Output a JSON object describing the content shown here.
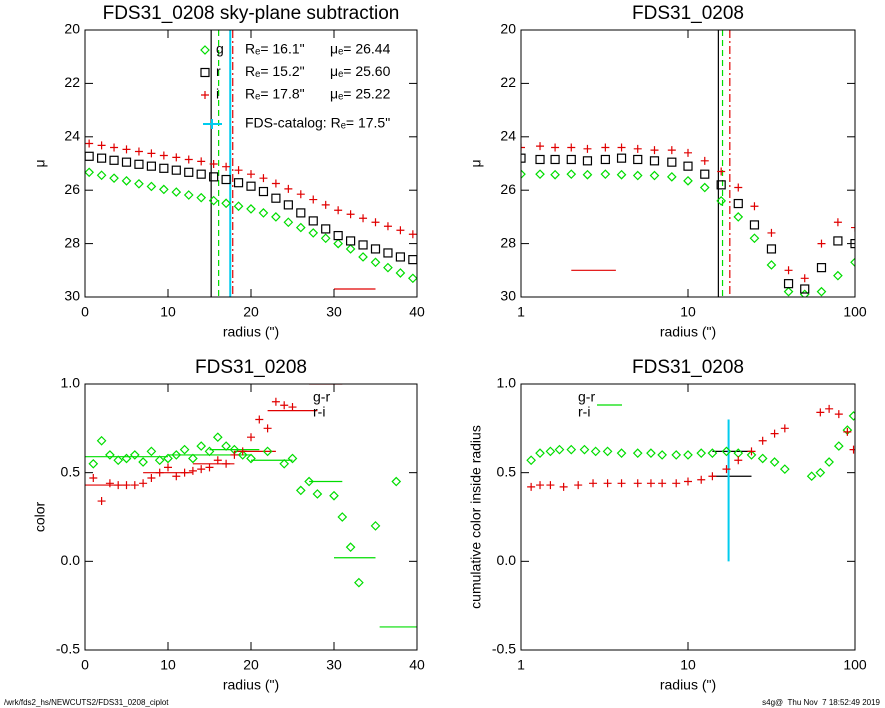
{
  "chart_data": [
    {
      "type": "scatter",
      "title": "FDS31_0208 sky-plane subtraction",
      "xlabel": "radius (\")",
      "ylabel": "μ",
      "xlim": [
        0,
        40
      ],
      "ylim": [
        30,
        20
      ],
      "xticks": [
        0,
        10,
        20,
        30,
        40
      ],
      "yticks": [
        20,
        22,
        24,
        26,
        28,
        30
      ],
      "xlog": false,
      "legend": true,
      "show_re": true,
      "show_catalog": true,
      "series": [
        {
          "name": "g",
          "color": "#00dd00",
          "marker": "diamond",
          "linestyle": "dashed",
          "re": {
            "value": 16.1,
            "label": "Rₑ= 16.1\""
          },
          "mu": {
            "value": 26.44,
            "label": "μₑ= 26.44"
          },
          "x": [
            0.5,
            2,
            3.5,
            5,
            6.5,
            8,
            9.5,
            11,
            12.5,
            14,
            15.5,
            17,
            18.5,
            20,
            21.5,
            23,
            24.5,
            26,
            27.5,
            29,
            30.5,
            32,
            33.5,
            35,
            36.5,
            38,
            39.5
          ],
          "values": [
            25.33,
            25.44,
            25.55,
            25.65,
            25.76,
            25.86,
            25.97,
            26.07,
            26.18,
            26.28,
            26.39,
            26.49,
            26.6,
            26.7,
            26.85,
            27.0,
            27.2,
            27.4,
            27.6,
            27.8,
            28.0,
            28.2,
            28.5,
            28.7,
            28.9,
            29.1,
            29.3
          ]
        },
        {
          "name": "r",
          "color": "#000000",
          "marker": "square",
          "linestyle": "solid",
          "re": {
            "value": 15.2,
            "label": "Rₑ= 15.2\""
          },
          "mu": {
            "value": 25.6,
            "label": "μₑ= 25.60"
          },
          "x": [
            0.5,
            2,
            3.5,
            5,
            6.5,
            8,
            9.5,
            11,
            12.5,
            14,
            15.5,
            17,
            18.5,
            20,
            21.5,
            23,
            24.5,
            26,
            27.5,
            29,
            30.5,
            32,
            33.5,
            35,
            36.5,
            38,
            39.5
          ],
          "values": [
            24.73,
            24.8,
            24.88,
            24.95,
            25.03,
            25.1,
            25.18,
            25.25,
            25.33,
            25.4,
            25.5,
            25.6,
            25.72,
            25.85,
            26.05,
            26.3,
            26.55,
            26.85,
            27.15,
            27.45,
            27.7,
            27.9,
            28.05,
            28.2,
            28.35,
            28.5,
            28.6
          ]
        },
        {
          "name": "i",
          "color": "#e00000",
          "marker": "plus",
          "linestyle": "dashdot",
          "re": {
            "value": 17.8,
            "label": "Rₑ= 17.8\""
          },
          "mu": {
            "value": 25.22,
            "label": "μₑ= 25.22"
          },
          "x": [
            0.5,
            2,
            3.5,
            5,
            6.5,
            8,
            9.5,
            11,
            12.5,
            14,
            15.5,
            17,
            18.5,
            20,
            21.5,
            23,
            24.5,
            26,
            27.5,
            29,
            30.5,
            32,
            33.5,
            35,
            36.5,
            38,
            39.5
          ],
          "values": [
            24.25,
            24.32,
            24.4,
            24.47,
            24.55,
            24.62,
            24.7,
            24.77,
            24.85,
            24.92,
            25.02,
            25.12,
            25.25,
            25.4,
            25.55,
            25.75,
            25.95,
            26.15,
            26.35,
            26.55,
            26.75,
            26.9,
            27.05,
            27.2,
            27.35,
            27.5,
            27.65
          ]
        }
      ],
      "catalog": {
        "value": 17.5,
        "label": "FDS-catalog: Rₑ= 17.5\"",
        "color": "#00ccee"
      },
      "segments": [
        {
          "color": "#e00000",
          "x": [
            30,
            35
          ],
          "y": 29.7
        }
      ]
    },
    {
      "type": "scatter",
      "title": "FDS31_0208",
      "xlabel": "radius (\")",
      "ylabel": "μ",
      "xlim": [
        1,
        100
      ],
      "ylim": [
        30,
        20
      ],
      "xticks": [
        1,
        10,
        100
      ],
      "yticks": [
        20,
        22,
        24,
        26,
        28,
        30
      ],
      "xlog": true,
      "legend": false,
      "show_re": true,
      "show_catalog": false,
      "series": [
        {
          "name": "g",
          "color": "#00dd00",
          "marker": "diamond",
          "x": [
            1,
            1.3,
            1.6,
            2,
            2.5,
            3.2,
            4,
            5,
            6.3,
            8,
            10,
            12.6,
            15.8,
            20,
            25,
            31.6,
            40,
            50,
            63,
            79,
            100
          ],
          "values": [
            25.4,
            25.4,
            25.42,
            25.4,
            25.42,
            25.4,
            25.42,
            25.45,
            25.45,
            25.5,
            25.65,
            25.9,
            26.4,
            27.0,
            27.8,
            28.8,
            29.8,
            29.9,
            29.8,
            29.2,
            28.7
          ]
        },
        {
          "name": "r",
          "color": "#000000",
          "marker": "square",
          "x": [
            1,
            1.3,
            1.6,
            2,
            2.5,
            3.2,
            4,
            5,
            6.3,
            8,
            10,
            12.6,
            15.8,
            20,
            25,
            31.6,
            40,
            50,
            63,
            79,
            100
          ],
          "values": [
            24.8,
            24.85,
            24.85,
            24.85,
            24.9,
            24.85,
            24.8,
            24.85,
            24.9,
            24.95,
            25.1,
            25.4,
            25.8,
            26.5,
            27.3,
            28.2,
            29.5,
            29.7,
            28.9,
            27.9,
            28.0
          ]
        },
        {
          "name": "i",
          "color": "#e00000",
          "marker": "plus",
          "x": [
            1,
            1.3,
            1.6,
            2,
            2.5,
            3.2,
            4,
            5,
            6.3,
            8,
            10,
            12.6,
            15.8,
            20,
            25,
            31.6,
            40,
            50,
            63,
            79,
            100
          ],
          "values": [
            24.4,
            24.35,
            24.4,
            24.4,
            24.45,
            24.4,
            24.4,
            24.45,
            24.5,
            24.5,
            24.6,
            24.9,
            25.3,
            25.9,
            26.6,
            27.6,
            29.0,
            29.3,
            28.0,
            27.2,
            27.4
          ]
        }
      ],
      "segments": [
        {
          "color": "#e00000",
          "x": [
            2,
            3.7
          ],
          "y": 29
        }
      ]
    },
    {
      "type": "scatter",
      "title": "FDS31_0208",
      "xlabel": "radius (\")",
      "ylabel": "color",
      "xlim": [
        0,
        40
      ],
      "ylim": [
        -0.5,
        1.0
      ],
      "xticks": [
        0,
        10,
        20,
        30,
        40
      ],
      "yticks": [
        -0.5,
        {
          "value": 0,
          "label": "0.0"
        },
        0.5,
        {
          "value": 1,
          "label": "1.0"
        }
      ],
      "xlog": false,
      "legend": true,
      "show_re": false,
      "show_catalog": false,
      "series": [
        {
          "name": "g-r",
          "color": "#00dd00",
          "marker": "diamond",
          "x": [
            1,
            2,
            3,
            4,
            5,
            6,
            7,
            8,
            9,
            10,
            11,
            12,
            13,
            14,
            15,
            16,
            17,
            18,
            19,
            20,
            22,
            24,
            25,
            26,
            27,
            28,
            30,
            31,
            32,
            33,
            35,
            37.5
          ],
          "values": [
            0.55,
            0.68,
            0.6,
            0.57,
            0.58,
            0.6,
            0.56,
            0.62,
            0.57,
            0.58,
            0.6,
            0.63,
            0.58,
            0.65,
            0.62,
            0.7,
            0.65,
            0.63,
            0.6,
            0.58,
            0.62,
            0.55,
            0.58,
            0.4,
            0.45,
            0.38,
            0.37,
            0.25,
            0.08,
            -0.12,
            0.2,
            0.45
          ]
        },
        {
          "name": "r-i",
          "color": "#e00000",
          "marker": "plus",
          "x": [
            1,
            2,
            3,
            4,
            5,
            6,
            7,
            8,
            9,
            10,
            11,
            12,
            13,
            14,
            15,
            16,
            17,
            18,
            19,
            20,
            21,
            22,
            23,
            24,
            25
          ],
          "values": [
            0.47,
            0.34,
            0.44,
            0.43,
            0.43,
            0.43,
            0.44,
            0.47,
            0.5,
            0.53,
            0.48,
            0.5,
            0.51,
            0.52,
            0.53,
            0.57,
            0.55,
            0.6,
            0.62,
            0.7,
            0.8,
            0.75,
            0.9,
            0.88,
            0.87
          ]
        }
      ],
      "segments": [
        {
          "color": "#00dd00",
          "x": [
            0,
            10
          ],
          "y": 0.59
        },
        {
          "color": "#00dd00",
          "x": [
            10,
            20
          ],
          "y": 0.6
        },
        {
          "color": "#00dd00",
          "x": [
            15,
            21
          ],
          "y": 0.63
        },
        {
          "color": "#00dd00",
          "x": [
            20,
            25
          ],
          "y": 0.57
        },
        {
          "color": "#00dd00",
          "x": [
            27,
            31
          ],
          "y": 0.45
        },
        {
          "color": "#00dd00",
          "x": [
            30,
            35
          ],
          "y": 0.02
        },
        {
          "color": "#00dd00",
          "x": [
            35.5,
            40
          ],
          "y": -0.37
        },
        {
          "color": "#e00000",
          "x": [
            0,
            5
          ],
          "y": 0.43
        },
        {
          "color": "#e00000",
          "x": [
            7,
            13
          ],
          "y": 0.5
        },
        {
          "color": "#e00000",
          "x": [
            13,
            18
          ],
          "y": 0.55
        },
        {
          "color": "#e00000",
          "x": [
            18,
            23
          ],
          "y": 0.62
        },
        {
          "color": "#e00000",
          "x": [
            22,
            28
          ],
          "y": 0.85
        },
        {
          "color": "#e00000",
          "x": [
            27,
            31
          ],
          "y": 1.0
        }
      ]
    },
    {
      "type": "scatter",
      "title": "FDS31_0208",
      "xlabel": "radius (\")",
      "ylabel": "cumulative color inside radius",
      "xlim": [
        1,
        100
      ],
      "ylim": [
        -0.5,
        1.0
      ],
      "xticks": [
        1,
        10,
        100
      ],
      "yticks": [
        -0.5,
        {
          "value": 0,
          "label": "0.0"
        },
        0.5,
        {
          "value": 1,
          "label": "1.0"
        }
      ],
      "xlog": true,
      "legend": true,
      "show_re": false,
      "show_catalog": true,
      "catalog_span": [
        0,
        0.8
      ],
      "series": [
        {
          "name": "g-r",
          "color": "#00dd00",
          "marker": "diamond",
          "x": [
            1.15,
            1.3,
            1.5,
            1.7,
            2,
            2.4,
            2.8,
            3.3,
            4,
            5,
            6,
            7,
            8.5,
            10,
            12,
            14,
            17,
            20,
            24,
            28,
            33,
            38,
            55,
            62,
            70,
            80,
            90,
            98
          ],
          "values": [
            0.57,
            0.61,
            0.62,
            0.63,
            0.63,
            0.63,
            0.62,
            0.62,
            0.61,
            0.61,
            0.61,
            0.6,
            0.6,
            0.6,
            0.61,
            0.61,
            0.62,
            0.61,
            0.6,
            0.58,
            0.56,
            0.52,
            0.48,
            0.5,
            0.56,
            0.65,
            0.74,
            0.82
          ]
        },
        {
          "name": "r-i",
          "color": "#e00000",
          "marker": "plus",
          "x": [
            1.15,
            1.3,
            1.5,
            1.8,
            2.2,
            2.7,
            3.3,
            4,
            5,
            6,
            7,
            8.5,
            10,
            12,
            14,
            17,
            20,
            24,
            28,
            33,
            38,
            62,
            70,
            80,
            90,
            98
          ],
          "values": [
            0.42,
            0.43,
            0.43,
            0.42,
            0.43,
            0.44,
            0.44,
            0.44,
            0.44,
            0.44,
            0.44,
            0.44,
            0.45,
            0.46,
            0.48,
            0.52,
            0.57,
            0.62,
            0.68,
            0.72,
            0.75,
            0.84,
            0.86,
            0.83,
            0.73,
            0.63
          ]
        }
      ],
      "segments": [
        {
          "color": "#000000",
          "x": [
            14,
            24
          ],
          "y": 0.62
        },
        {
          "color": "#000000",
          "x": [
            14,
            24
          ],
          "y": 0.48
        }
      ]
    }
  ],
  "footer": {
    "left": "/wrk/fds2_hs/NEWCUTS2/FDS31_0208_ciplot",
    "right": "s4g@  Thu Nov  7 18:52:49 2019"
  }
}
